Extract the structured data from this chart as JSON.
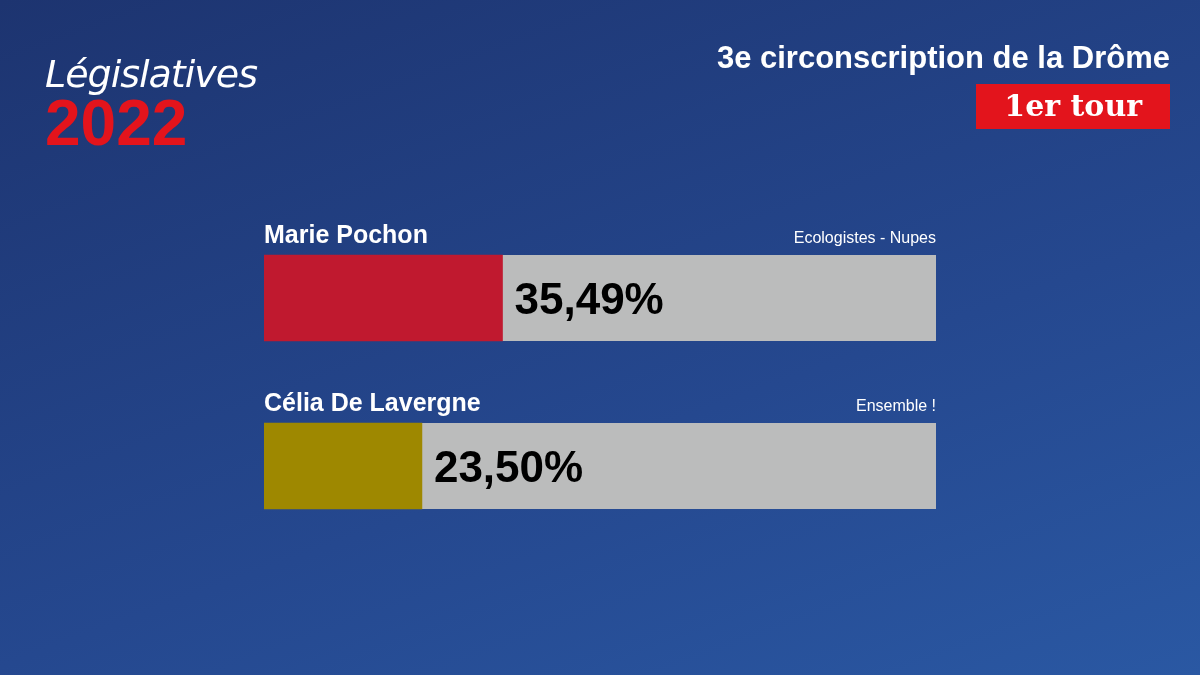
{
  "chart_data": {
    "type": "bar",
    "orientation": "horizontal",
    "title": "3e circonscription de la Drôme",
    "subtitle": "1er tour",
    "categories": [
      "Marie Pochon",
      "Célia De Lavergne"
    ],
    "series": [
      {
        "colors": [
          "#c0192f",
          "#9e8800"
        ],
        "values": [
          35.49,
          23.5
        ],
        "value_labels": [
          "35,49%",
          "23,50%"
        ]
      }
    ],
    "xlim": [
      0,
      100
    ],
    "tick_labels": false,
    "legend": false,
    "annotations": [
      "Législatives",
      "2022",
      "Ecologistes - Nupes",
      "Ensemble !"
    ]
  }
}
